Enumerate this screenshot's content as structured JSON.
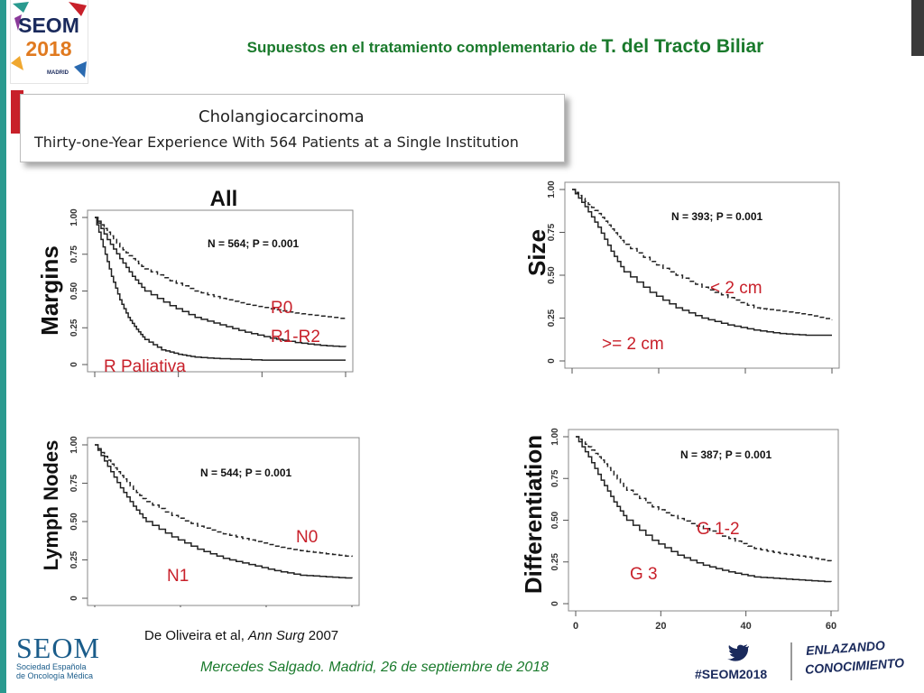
{
  "header": {
    "title_prefix": "Supuestos en el tratamiento complementario de",
    "title_emphasis": "T. del Tracto Biliar"
  },
  "logo": {
    "line1": "SEOM",
    "line2": "2018",
    "line3": "MADRID"
  },
  "paper": {
    "title": "Cholangiocarcinoma",
    "subtitle": "Thirty-one-Year Experience With 564 Patients at a Single Institution"
  },
  "footer": {
    "citation_prefix": "De Oliveira et al,",
    "citation_journal": "Ann Surg",
    "citation_year": "2007",
    "presenter": "Mercedes Salgado. Madrid, 26 de septiembre de 2018",
    "hashtag": "#SEOM2018",
    "slogan_line1": "ENLAZANDO",
    "slogan_line2": "CONOCIMIENTO",
    "org_name": "SEOM",
    "org_line1": "Sociedad Española",
    "org_line2": "de Oncología Médica"
  },
  "colors": {
    "accent_green": "#1a7a2c",
    "label_red": "#c8202a",
    "navy": "#1a2a5c",
    "teal": "#2a9a8f"
  },
  "chart_data": [
    {
      "type": "line",
      "panel": "margins",
      "title": "All",
      "ylabel": "Margins",
      "annotation": "N = 564; P = 0.001",
      "ylim": [
        0,
        1
      ],
      "xlim": [
        0,
        60
      ],
      "yticks": [
        "0",
        "0.25",
        "0.50",
        "0.75",
        "1.00"
      ],
      "series": [
        {
          "name": "R0",
          "style": "dashed",
          "x": [
            0,
            3,
            6,
            9,
            12,
            18,
            24,
            30,
            36,
            42,
            48,
            54,
            60
          ],
          "values": [
            1.0,
            0.9,
            0.8,
            0.72,
            0.65,
            0.57,
            0.5,
            0.45,
            0.41,
            0.38,
            0.35,
            0.33,
            0.31
          ]
        },
        {
          "name": "R1-R2",
          "style": "solid",
          "x": [
            0,
            3,
            6,
            9,
            12,
            18,
            24,
            30,
            36,
            42,
            48,
            54,
            60
          ],
          "values": [
            1.0,
            0.85,
            0.72,
            0.6,
            0.5,
            0.4,
            0.32,
            0.27,
            0.22,
            0.18,
            0.15,
            0.13,
            0.12
          ]
        },
        {
          "name": "R Paliativa",
          "style": "solid",
          "x": [
            0,
            2,
            4,
            6,
            8,
            10,
            12,
            16,
            20,
            24,
            30,
            40,
            50,
            60
          ],
          "values": [
            1.0,
            0.8,
            0.6,
            0.44,
            0.32,
            0.24,
            0.17,
            0.1,
            0.07,
            0.05,
            0.04,
            0.03,
            0.03,
            0.03
          ]
        }
      ]
    },
    {
      "type": "line",
      "panel": "lymph_nodes",
      "ylabel": "Lymph Nodes",
      "annotation": "N = 544; P = 0.001",
      "ylim": [
        0,
        1
      ],
      "xlim": [
        0,
        60
      ],
      "yticks": [
        "0",
        "0.25",
        "0.50",
        "0.75",
        "1.00"
      ],
      "series": [
        {
          "name": "N0",
          "style": "dashed",
          "x": [
            0,
            3,
            6,
            9,
            12,
            18,
            24,
            30,
            36,
            42,
            48,
            54,
            60
          ],
          "values": [
            1.0,
            0.9,
            0.8,
            0.71,
            0.63,
            0.54,
            0.47,
            0.42,
            0.38,
            0.34,
            0.31,
            0.29,
            0.27
          ]
        },
        {
          "name": "N1",
          "style": "solid",
          "x": [
            0,
            3,
            6,
            9,
            12,
            18,
            24,
            30,
            36,
            42,
            48,
            54,
            60
          ],
          "values": [
            1.0,
            0.86,
            0.72,
            0.6,
            0.5,
            0.4,
            0.32,
            0.26,
            0.22,
            0.18,
            0.15,
            0.14,
            0.13
          ]
        }
      ]
    },
    {
      "type": "line",
      "panel": "size",
      "ylabel": "Size",
      "annotation": "N = 393; P = 0.001",
      "ylim": [
        0,
        1
      ],
      "xlim": [
        0,
        60
      ],
      "yticks": [
        "0",
        "0.25",
        "0.50",
        "0.75",
        "1.00"
      ],
      "series": [
        {
          "name": "< 2 cm",
          "style": "dashed",
          "x": [
            0,
            3,
            6,
            9,
            12,
            18,
            24,
            30,
            36,
            42,
            48,
            54,
            60
          ],
          "values": [
            1.0,
            0.93,
            0.86,
            0.77,
            0.68,
            0.58,
            0.5,
            0.43,
            0.37,
            0.31,
            0.29,
            0.27,
            0.24
          ]
        },
        {
          "name": ">= 2 cm",
          "style": "solid",
          "x": [
            0,
            3,
            6,
            9,
            12,
            18,
            24,
            30,
            36,
            42,
            48,
            54,
            60
          ],
          "values": [
            1.0,
            0.9,
            0.78,
            0.64,
            0.52,
            0.4,
            0.31,
            0.25,
            0.21,
            0.18,
            0.16,
            0.15,
            0.15
          ]
        }
      ]
    },
    {
      "type": "line",
      "panel": "differentiation",
      "ylabel": "Differentiation",
      "annotation": "N = 387; P = 0.001",
      "ylim": [
        0,
        1
      ],
      "xlim": [
        0,
        60
      ],
      "xticks": [
        "0",
        "20",
        "40",
        "60"
      ],
      "yticks": [
        "0",
        "0.25",
        "0.50",
        "0.75",
        "1.00"
      ],
      "series": [
        {
          "name": "G 1-2",
          "style": "dashed",
          "x": [
            0,
            3,
            6,
            9,
            12,
            18,
            24,
            30,
            36,
            42,
            48,
            54,
            60
          ],
          "values": [
            1.0,
            0.94,
            0.86,
            0.77,
            0.68,
            0.58,
            0.51,
            0.45,
            0.39,
            0.33,
            0.3,
            0.28,
            0.25
          ]
        },
        {
          "name": "G 3",
          "style": "solid",
          "x": [
            0,
            3,
            6,
            9,
            12,
            18,
            24,
            30,
            36,
            42,
            48,
            54,
            60
          ],
          "values": [
            1.0,
            0.88,
            0.74,
            0.61,
            0.5,
            0.38,
            0.29,
            0.23,
            0.19,
            0.16,
            0.15,
            0.14,
            0.13
          ]
        }
      ]
    }
  ]
}
